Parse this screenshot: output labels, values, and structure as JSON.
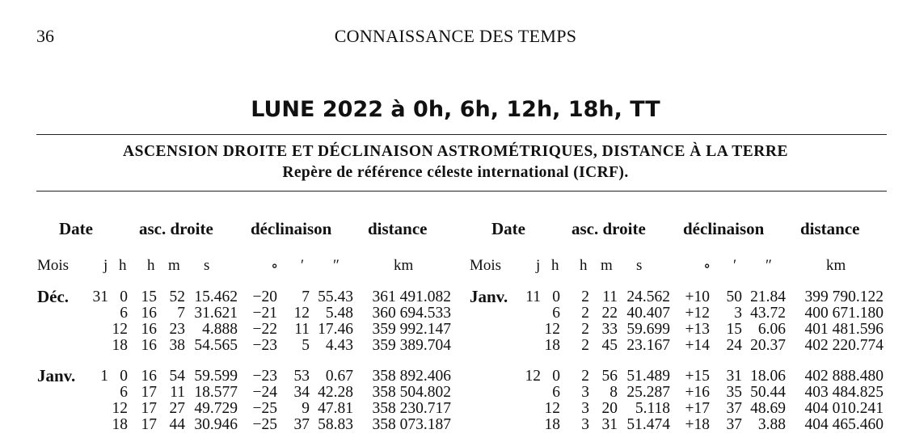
{
  "page": {
    "number": "36",
    "running_head": "CONNAISSANCE DES TEMPS",
    "title": "LUNE 2022 à 0h, 6h, 12h, 18h, TT",
    "subtitle": "ASCENSION DROITE ET DÉCLINAISON ASTROMÉTRIQUES, DISTANCE À LA TERRE",
    "subtitle2": "Repère de référence céleste international (ICRF)."
  },
  "headers": {
    "date": "Date",
    "ra": "asc. droite",
    "dec": "déclinaison",
    "dist": "distance",
    "units": {
      "mois": "Mois",
      "j": "j",
      "h": "h",
      "rah": "h",
      "ram": "m",
      "ras": "s",
      "deg": "∘",
      "min": "′",
      "sec": "″",
      "km": "km"
    }
  },
  "tables": [
    {
      "rows": [
        {
          "mois": "Déc.",
          "j": "31",
          "h": "0",
          "rah": "15",
          "ram": "52",
          "ras": "15.462",
          "dd": "−20",
          "dm": "7",
          "ds": "55.43",
          "km": "361 491.082"
        },
        {
          "mois": "",
          "j": "",
          "h": "6",
          "rah": "16",
          "ram": "7",
          "ras": "31.621",
          "dd": "−21",
          "dm": "12",
          "ds": "5.48",
          "km": "360 694.533"
        },
        {
          "mois": "",
          "j": "",
          "h": "12",
          "rah": "16",
          "ram": "23",
          "ras": "4.888",
          "dd": "−22",
          "dm": "11",
          "ds": "17.46",
          "km": "359 992.147"
        },
        {
          "mois": "",
          "j": "",
          "h": "18",
          "rah": "16",
          "ram": "38",
          "ras": "54.565",
          "dd": "−23",
          "dm": "5",
          "ds": "4.43",
          "km": "359 389.704"
        },
        {
          "mois": "Janv.",
          "j": "1",
          "h": "0",
          "rah": "16",
          "ram": "54",
          "ras": "59.599",
          "dd": "−23",
          "dm": "53",
          "ds": "0.67",
          "km": "358 892.406"
        },
        {
          "mois": "",
          "j": "",
          "h": "6",
          "rah": "17",
          "ram": "11",
          "ras": "18.577",
          "dd": "−24",
          "dm": "34",
          "ds": "42.28",
          "km": "358 504.802"
        },
        {
          "mois": "",
          "j": "",
          "h": "12",
          "rah": "17",
          "ram": "27",
          "ras": "49.729",
          "dd": "−25",
          "dm": "9",
          "ds": "47.81",
          "km": "358 230.717"
        },
        {
          "mois": "",
          "j": "",
          "h": "18",
          "rah": "17",
          "ram": "44",
          "ras": "30.946",
          "dd": "−25",
          "dm": "37",
          "ds": "58.83",
          "km": "358 073.187"
        }
      ]
    },
    {
      "rows": [
        {
          "mois": "Janv.",
          "j": "11",
          "h": "0",
          "rah": "2",
          "ram": "11",
          "ras": "24.562",
          "dd": "+10",
          "dm": "50",
          "ds": "21.84",
          "km": "399 790.122"
        },
        {
          "mois": "",
          "j": "",
          "h": "6",
          "rah": "2",
          "ram": "22",
          "ras": "40.407",
          "dd": "+12",
          "dm": "3",
          "ds": "43.72",
          "km": "400 671.180"
        },
        {
          "mois": "",
          "j": "",
          "h": "12",
          "rah": "2",
          "ram": "33",
          "ras": "59.699",
          "dd": "+13",
          "dm": "15",
          "ds": "6.06",
          "km": "401 481.596"
        },
        {
          "mois": "",
          "j": "",
          "h": "18",
          "rah": "2",
          "ram": "45",
          "ras": "23.167",
          "dd": "+14",
          "dm": "24",
          "ds": "20.37",
          "km": "402 220.774"
        },
        {
          "mois": "",
          "j": "12",
          "h": "0",
          "rah": "2",
          "ram": "56",
          "ras": "51.489",
          "dd": "+15",
          "dm": "31",
          "ds": "18.06",
          "km": "402 888.480"
        },
        {
          "mois": "",
          "j": "",
          "h": "6",
          "rah": "3",
          "ram": "8",
          "ras": "25.287",
          "dd": "+16",
          "dm": "35",
          "ds": "50.44",
          "km": "403 484.825"
        },
        {
          "mois": "",
          "j": "",
          "h": "12",
          "rah": "3",
          "ram": "20",
          "ras": "5.118",
          "dd": "+17",
          "dm": "37",
          "ds": "48.69",
          "km": "404 010.241"
        },
        {
          "mois": "",
          "j": "",
          "h": "18",
          "rah": "3",
          "ram": "31",
          "ras": "51.474",
          "dd": "+18",
          "dm": "37",
          "ds": "3.88",
          "km": "404 465.460"
        }
      ]
    }
  ]
}
